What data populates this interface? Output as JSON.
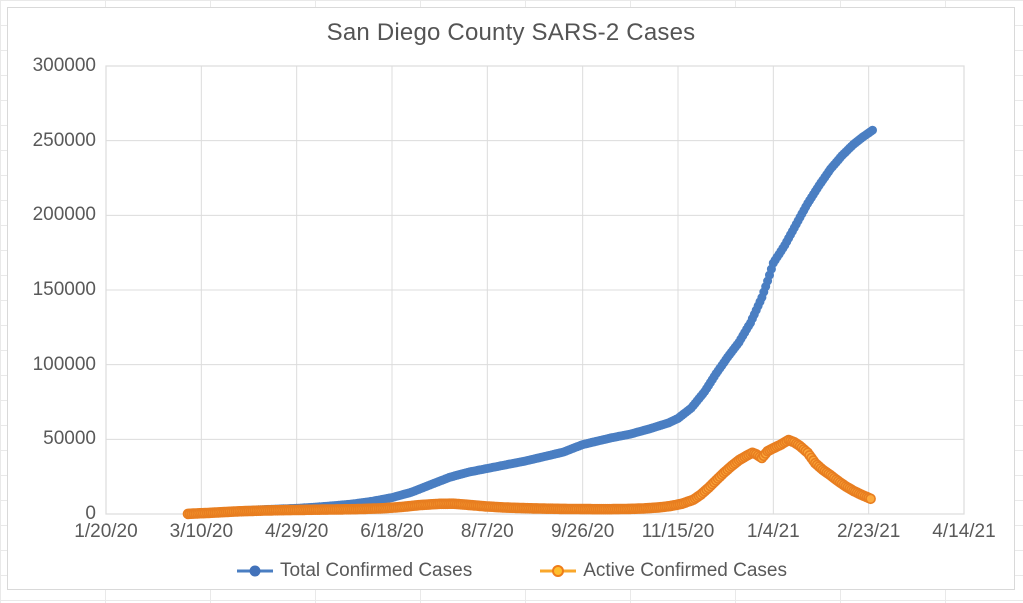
{
  "chart": {
    "title": "San Diego County SARS-2 Cases"
  },
  "chart_data": {
    "type": "line",
    "title": "San Diego County SARS-2 Cases",
    "marker_style": "daily point markers on smooth line",
    "grid": true,
    "legend_position": "bottom",
    "x_axis": {
      "tick_labels": [
        "1/20/20",
        "3/10/20",
        "4/29/20",
        "6/18/20",
        "8/7/20",
        "9/26/20",
        "11/15/20",
        "1/4/21",
        "2/23/21",
        "4/14/21"
      ],
      "tick_interval_days": 50,
      "range_days": [
        0,
        450
      ],
      "epoch": "1/20/20"
    },
    "y_axis": {
      "ticks": [
        0,
        50000,
        100000,
        150000,
        200000,
        250000,
        300000
      ],
      "ylim": [
        0,
        300000
      ]
    },
    "colors": {
      "grid": "#dcdcdc",
      "axis_text": "#595959",
      "total_series": "#4a7ec2",
      "active_line": "#f59e27",
      "active_marker_fill": "#fca93c",
      "active_marker_stroke": "#e87e20"
    },
    "series": [
      {
        "name": "Total Confirmed Cases",
        "line_color": "#4a7ec2",
        "marker_fill": "#4a7ec2",
        "marker_stroke": "none",
        "keypoints_day_value": [
          [
            43,
            100
          ],
          [
            50,
            600
          ],
          [
            60,
            1400
          ],
          [
            70,
            2100
          ],
          [
            80,
            2800
          ],
          [
            90,
            3300
          ],
          [
            100,
            3800
          ],
          [
            110,
            4600
          ],
          [
            120,
            5600
          ],
          [
            130,
            6800
          ],
          [
            140,
            8600
          ],
          [
            150,
            11000
          ],
          [
            160,
            14500
          ],
          [
            170,
            19500
          ],
          [
            180,
            24500
          ],
          [
            190,
            28000
          ],
          [
            200,
            30500
          ],
          [
            210,
            33000
          ],
          [
            220,
            35500
          ],
          [
            230,
            38500
          ],
          [
            240,
            41500
          ],
          [
            250,
            46500
          ],
          [
            255,
            48000
          ],
          [
            265,
            51000
          ],
          [
            275,
            53500
          ],
          [
            285,
            57000
          ],
          [
            295,
            61000
          ],
          [
            300,
            64000
          ],
          [
            307,
            71000
          ],
          [
            314,
            82000
          ],
          [
            320,
            94000
          ],
          [
            326,
            105000
          ],
          [
            332,
            115000
          ],
          [
            338,
            128000
          ],
          [
            344,
            145000
          ],
          [
            347,
            156000
          ],
          [
            350,
            168000
          ],
          [
            353,
            174000
          ],
          [
            356,
            180000
          ],
          [
            362,
            194000
          ],
          [
            368,
            208000
          ],
          [
            374,
            220000
          ],
          [
            380,
            231000
          ],
          [
            386,
            240000
          ],
          [
            392,
            247500
          ],
          [
            397,
            252500
          ],
          [
            402,
            257000
          ]
        ]
      },
      {
        "name": "Active Confirmed Cases",
        "line_color": "#f59e27",
        "marker_fill": "#fca93c",
        "marker_stroke": "#e87e20",
        "keypoints_day_value": [
          [
            43,
            100
          ],
          [
            55,
            800
          ],
          [
            70,
            1800
          ],
          [
            85,
            2400
          ],
          [
            100,
            2700
          ],
          [
            115,
            2950
          ],
          [
            130,
            3200
          ],
          [
            145,
            3800
          ],
          [
            155,
            4700
          ],
          [
            165,
            6000
          ],
          [
            175,
            6800
          ],
          [
            182,
            6900
          ],
          [
            190,
            6100
          ],
          [
            200,
            5000
          ],
          [
            210,
            4300
          ],
          [
            220,
            3900
          ],
          [
            230,
            3600
          ],
          [
            240,
            3400
          ],
          [
            250,
            3300
          ],
          [
            258,
            3200
          ],
          [
            266,
            3250
          ],
          [
            274,
            3400
          ],
          [
            282,
            3700
          ],
          [
            290,
            4400
          ],
          [
            296,
            5300
          ],
          [
            302,
            6800
          ],
          [
            308,
            9500
          ],
          [
            312,
            13000
          ],
          [
            316,
            17500
          ],
          [
            320,
            22500
          ],
          [
            324,
            27500
          ],
          [
            328,
            32000
          ],
          [
            332,
            36000
          ],
          [
            336,
            39000
          ],
          [
            339,
            41000
          ],
          [
            341,
            40000
          ],
          [
            344,
            37500
          ],
          [
            347,
            42000
          ],
          [
            350,
            44000
          ],
          [
            354,
            46500
          ],
          [
            358,
            49500
          ],
          [
            361,
            48000
          ],
          [
            364,
            45500
          ],
          [
            368,
            41000
          ],
          [
            372,
            34000
          ],
          [
            376,
            29500
          ],
          [
            380,
            26000
          ],
          [
            384,
            22000
          ],
          [
            388,
            18500
          ],
          [
            392,
            15500
          ],
          [
            396,
            13000
          ],
          [
            401,
            10200
          ]
        ]
      }
    ]
  }
}
